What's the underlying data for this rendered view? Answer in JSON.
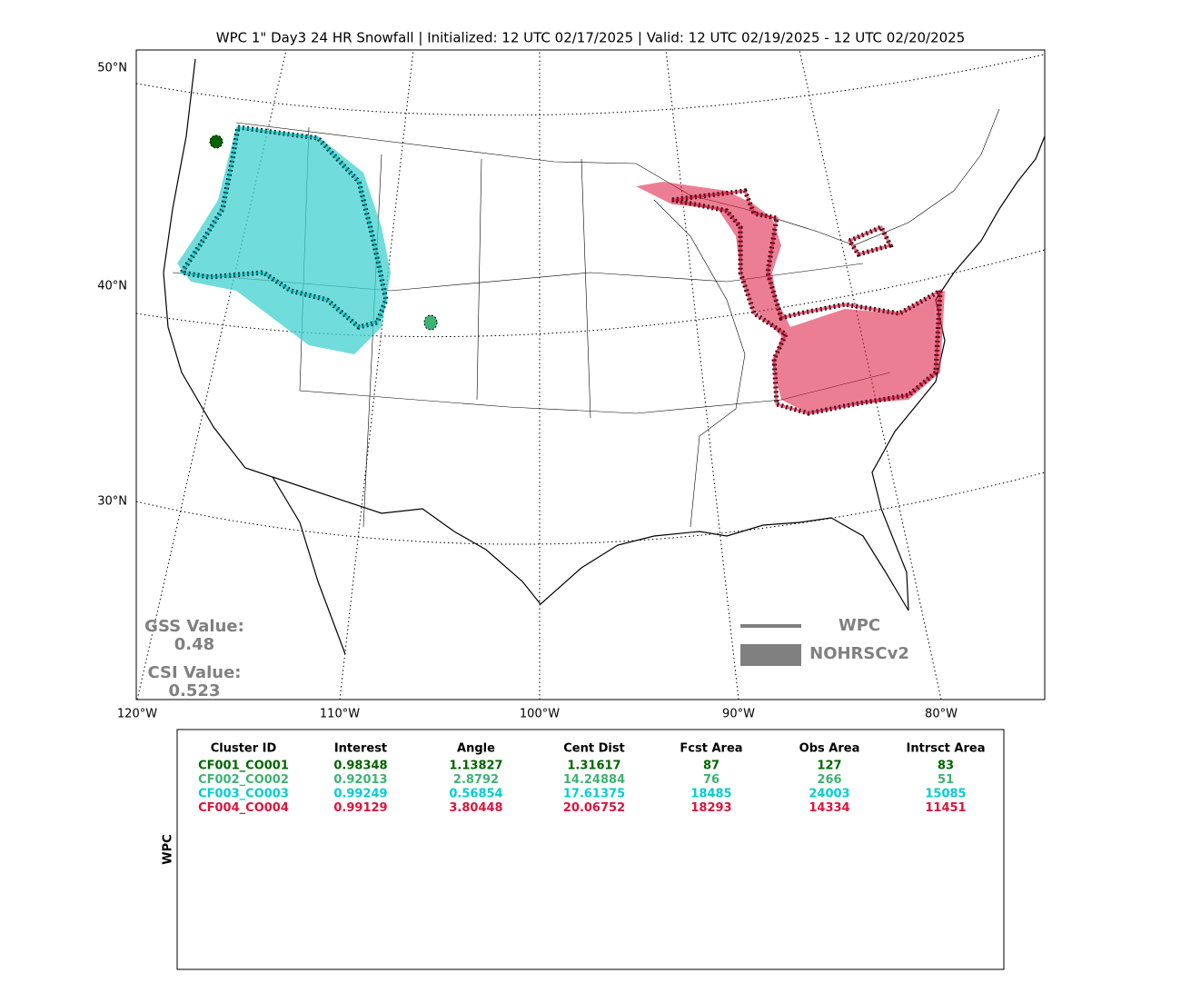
{
  "title": "WPC 1\" Day3 24 HR Snowfall | Initialized: 12 UTC 02/17/2025 | Valid: 12 UTC 02/19/2025 - 12 UTC 02/20/2025",
  "map": {
    "lat_labels": [
      "50°N",
      "40°N",
      "30°N"
    ],
    "lon_labels": [
      "120°W",
      "110°W",
      "100°W",
      "90°W",
      "80°W"
    ]
  },
  "scores": [
    {
      "label": "GSS Value:",
      "value": "0.48"
    },
    {
      "label": "CSI Value:",
      "value": "0.523"
    }
  ],
  "legend": [
    "WPC",
    "NOHRSCv2"
  ],
  "table": {
    "side_label": "WPC",
    "columns": [
      "Cluster ID",
      "Interest",
      "Angle",
      "Cent Dist",
      "Fcst Area",
      "Obs Area",
      "Intrsct Area"
    ],
    "rows": [
      {
        "color": "#006400",
        "cells": [
          "CF001_CO001",
          "0.98348",
          "1.13827",
          "1.31617",
          "87",
          "127",
          "83"
        ]
      },
      {
        "color": "#3cb371",
        "cells": [
          "CF002_CO002",
          "0.92013",
          "2.8792",
          "14.24884",
          "76",
          "266",
          "51"
        ]
      },
      {
        "color": "#00ced1",
        "cells": [
          "CF003_CO003",
          "0.99249",
          "0.56854",
          "17.61375",
          "18485",
          "24003",
          "15085"
        ]
      },
      {
        "color": "#dc143c",
        "cells": [
          "CF004_CO004",
          "0.99129",
          "3.80448",
          "20.06752",
          "18293",
          "14334",
          "11451"
        ]
      }
    ]
  }
}
